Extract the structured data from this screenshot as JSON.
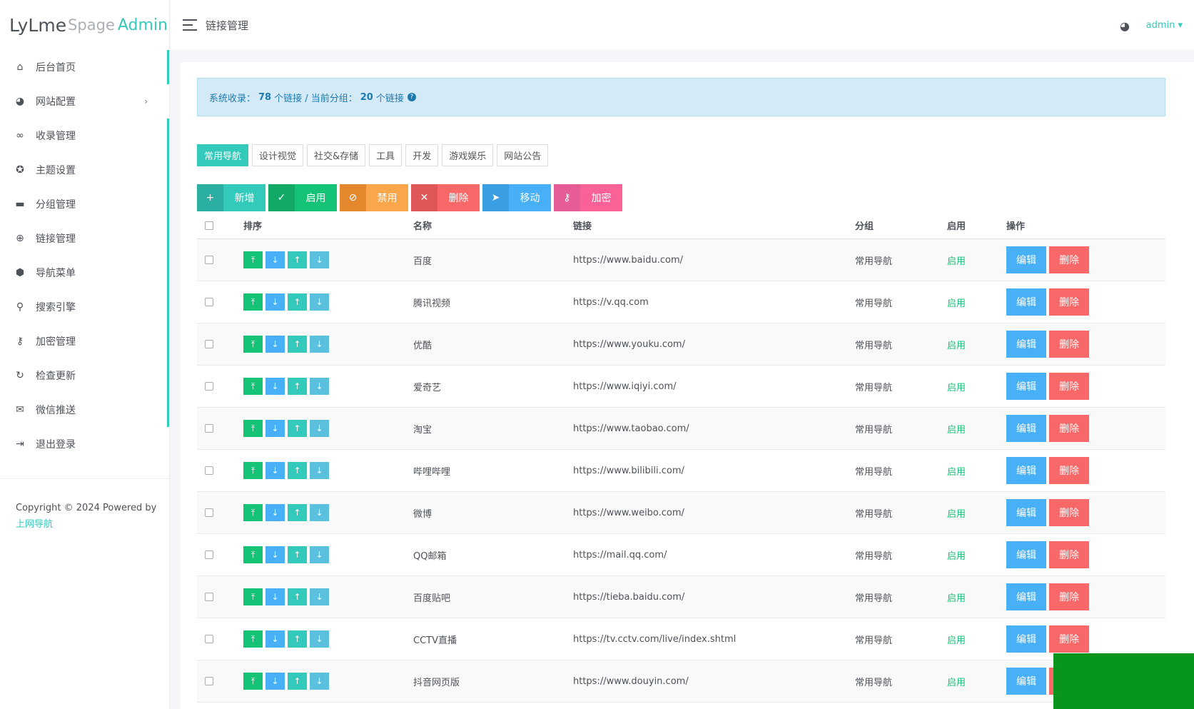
{
  "logo": {
    "part1": "LyLme",
    "part2": "Spage",
    "part3": "Admin"
  },
  "sidebar": {
    "items": [
      {
        "label": "后台首页",
        "icon": "home-icon",
        "glyph": "⌂"
      },
      {
        "label": "网站配置",
        "icon": "palette-icon",
        "glyph": "◕"
      },
      {
        "label": "收录管理",
        "icon": "link-icon",
        "glyph": "∞"
      },
      {
        "label": "主题设置",
        "icon": "award-icon",
        "glyph": "✪"
      },
      {
        "label": "分组管理",
        "icon": "folder-icon",
        "glyph": "▬"
      },
      {
        "label": "链接管理",
        "icon": "globe-icon",
        "glyph": "⊕"
      },
      {
        "label": "导航菜单",
        "icon": "cube-icon",
        "glyph": "⬢"
      },
      {
        "label": "搜索引擎",
        "icon": "search-icon",
        "glyph": "⚲"
      },
      {
        "label": "加密管理",
        "icon": "key-icon",
        "glyph": "⚷"
      },
      {
        "label": "检查更新",
        "icon": "refresh-icon",
        "glyph": "↻"
      },
      {
        "label": "微信推送",
        "icon": "wechat-icon",
        "glyph": "✉"
      },
      {
        "label": "退出登录",
        "icon": "logout-icon",
        "glyph": "⇥"
      }
    ],
    "chevron": "›",
    "copyright": "Copyright © 2024 Powered by",
    "copyright_link": "上网导航"
  },
  "header": {
    "title": "链接管理",
    "user": "admin ▾",
    "palette_glyph": "◕"
  },
  "alert": {
    "prefix": "系统收录：",
    "total": "78",
    "total_suffix": "个链接 / 当前分组：",
    "group_count": "20",
    "group_suffix": "个链接",
    "help": "?"
  },
  "tabs": [
    "常用导航",
    "设计视觉",
    "社交&存储",
    "工具",
    "开发",
    "游戏娱乐",
    "网站公告"
  ],
  "actions": [
    {
      "label": "新增",
      "glyph": "+",
      "icon": "plus-icon",
      "dark": "#2aafa2",
      "light": "#33cabb"
    },
    {
      "label": "启用",
      "glyph": "✓",
      "icon": "check-icon",
      "dark": "#12a967",
      "light": "#15c377"
    },
    {
      "label": "禁用",
      "glyph": "⊘",
      "icon": "ban-icon",
      "dark": "#e4872d",
      "light": "#faa64b"
    },
    {
      "label": "删除",
      "glyph": "✕",
      "icon": "close-icon",
      "dark": "#e05757",
      "light": "#f96868"
    },
    {
      "label": "移动",
      "glyph": "➤",
      "icon": "move-icon",
      "dark": "#3a9ee3",
      "light": "#48b0f7"
    },
    {
      "label": "加密",
      "glyph": "⚷",
      "icon": "key-icon",
      "dark": "#e55c97",
      "light": "#f96197"
    }
  ],
  "table": {
    "headers": {
      "sort": "排序",
      "name": "名称",
      "url": "链接",
      "group": "分组",
      "enabled": "启用",
      "ops": "操作"
    },
    "sort_glyphs": {
      "top": "⤒",
      "down": "↓",
      "up": "↑",
      "down2": "↓"
    },
    "edit_label": "编辑",
    "delete_label": "删除",
    "rows": [
      {
        "name": "百度",
        "url": "https://www.baidu.com/",
        "group": "常用导航",
        "enabled": "启用"
      },
      {
        "name": "腾讯视频",
        "url": "https://v.qq.com",
        "group": "常用导航",
        "enabled": "启用"
      },
      {
        "name": "优酷",
        "url": "https://www.youku.com/",
        "group": "常用导航",
        "enabled": "启用"
      },
      {
        "name": "爱奇艺",
        "url": "https://www.iqiyi.com/",
        "group": "常用导航",
        "enabled": "启用"
      },
      {
        "name": "淘宝",
        "url": "https://www.taobao.com/",
        "group": "常用导航",
        "enabled": "启用"
      },
      {
        "name": "哔哩哔哩",
        "url": "https://www.bilibili.com/",
        "group": "常用导航",
        "enabled": "启用"
      },
      {
        "name": "微博",
        "url": "https://www.weibo.com/",
        "group": "常用导航",
        "enabled": "启用"
      },
      {
        "name": "QQ邮箱",
        "url": "https://mail.qq.com/",
        "group": "常用导航",
        "enabled": "启用"
      },
      {
        "name": "百度贴吧",
        "url": "https://tieba.baidu.com/",
        "group": "常用导航",
        "enabled": "启用"
      },
      {
        "name": "CCTV直播",
        "url": "https://tv.cctv.com/live/index.shtml",
        "group": "常用导航",
        "enabled": "启用"
      },
      {
        "name": "抖音网页版",
        "url": "https://www.douyin.com/",
        "group": "常用导航",
        "enabled": "启用"
      }
    ]
  }
}
